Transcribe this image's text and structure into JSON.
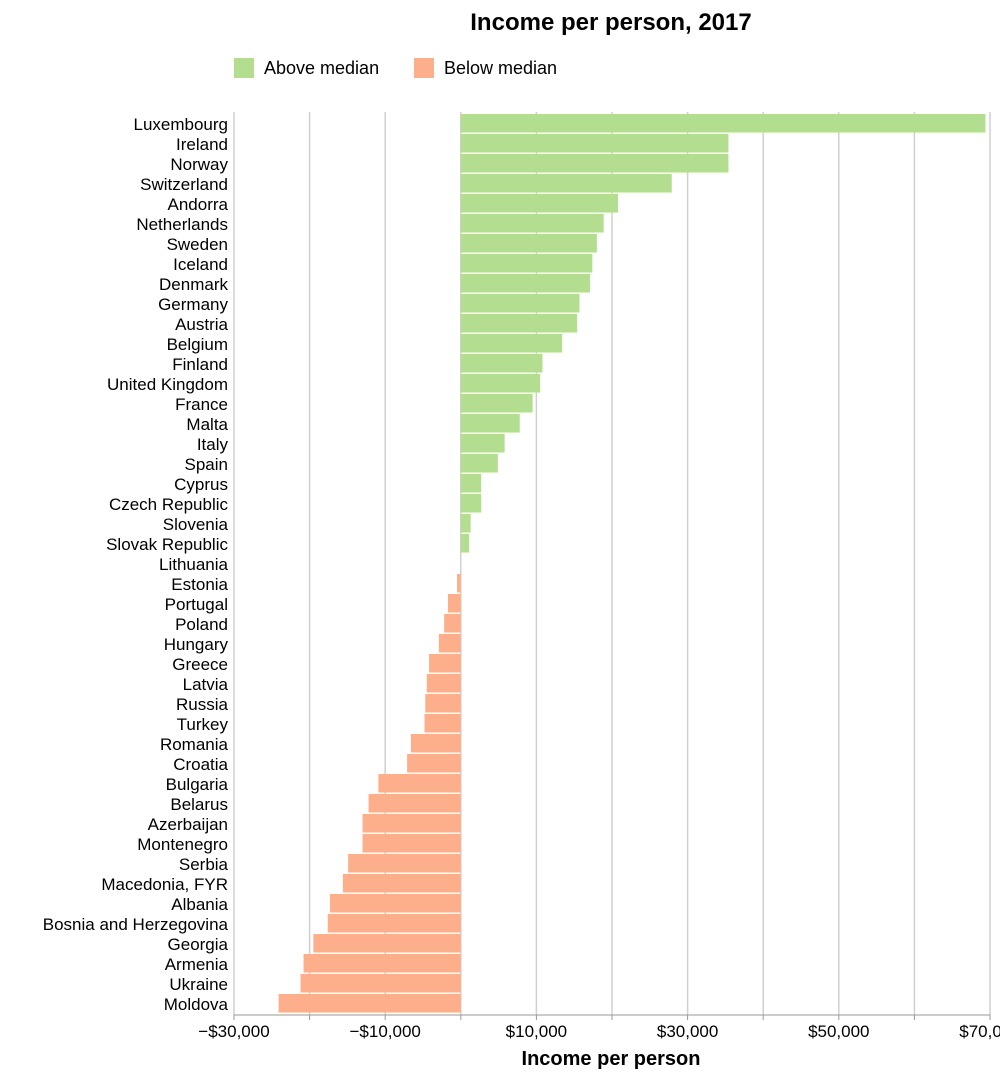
{
  "chart_data": {
    "type": "bar",
    "orientation": "horizontal",
    "title": "Income per person, 2017",
    "xlabel": "Income per person",
    "ylabel": "",
    "xlim": [
      -30000,
      70000
    ],
    "grid": true,
    "legend_position": "top-left",
    "tick_values": [
      -30000,
      -20000,
      -10000,
      0,
      10000,
      20000,
      30000,
      40000,
      50000,
      60000,
      70000
    ],
    "tick_labels": [
      "−$30,000",
      "",
      "−$10,000",
      "",
      "$10,000",
      "",
      "$30,000",
      "",
      "$50,000",
      "",
      "$70,000"
    ],
    "legend": [
      {
        "name": "Above median",
        "color": "#b3de8f"
      },
      {
        "name": "Below median",
        "color": "#fdaf8b"
      }
    ],
    "categories": [
      "Luxembourg",
      "Ireland",
      "Norway",
      "Switzerland",
      "Andorra",
      "Netherlands",
      "Sweden",
      "Iceland",
      "Denmark",
      "Germany",
      "Austria",
      "Belgium",
      "Finland",
      "United Kingdom",
      "France",
      "Malta",
      "Italy",
      "Spain",
      "Cyprus",
      "Czech Republic",
      "Slovenia",
      "Slovak Republic",
      "Lithuania",
      "Estonia",
      "Portugal",
      "Poland",
      "Hungary",
      "Greece",
      "Latvia",
      "Russia",
      "Turkey",
      "Romania",
      "Croatia",
      "Bulgaria",
      "Belarus",
      "Azerbaijan",
      "Montenegro",
      "Serbia",
      "Macedonia, FYR",
      "Albania",
      "Bosnia and Herzegovina",
      "Georgia",
      "Armenia",
      "Ukraine",
      "Moldova"
    ],
    "values": [
      69400,
      35400,
      35400,
      27900,
      20800,
      18900,
      18000,
      17400,
      17100,
      15700,
      15400,
      13400,
      10800,
      10500,
      9500,
      7800,
      5800,
      4900,
      2700,
      2700,
      1300,
      1100,
      0,
      -500,
      -1700,
      -2200,
      -2900,
      -4200,
      -4500,
      -4700,
      -4800,
      -6600,
      -7100,
      -10900,
      -12200,
      -13000,
      -13000,
      -14900,
      -15600,
      -17300,
      -17600,
      -19500,
      -20800,
      -21200,
      -24100
    ],
    "groups": [
      "Above median",
      "Above median",
      "Above median",
      "Above median",
      "Above median",
      "Above median",
      "Above median",
      "Above median",
      "Above median",
      "Above median",
      "Above median",
      "Above median",
      "Above median",
      "Above median",
      "Above median",
      "Above median",
      "Above median",
      "Above median",
      "Above median",
      "Above median",
      "Above median",
      "Above median",
      "Above median",
      "Below median",
      "Below median",
      "Below median",
      "Below median",
      "Below median",
      "Below median",
      "Below median",
      "Below median",
      "Below median",
      "Below median",
      "Below median",
      "Below median",
      "Below median",
      "Below median",
      "Below median",
      "Below median",
      "Below median",
      "Below median",
      "Below median",
      "Below median",
      "Below median",
      "Below median"
    ]
  }
}
